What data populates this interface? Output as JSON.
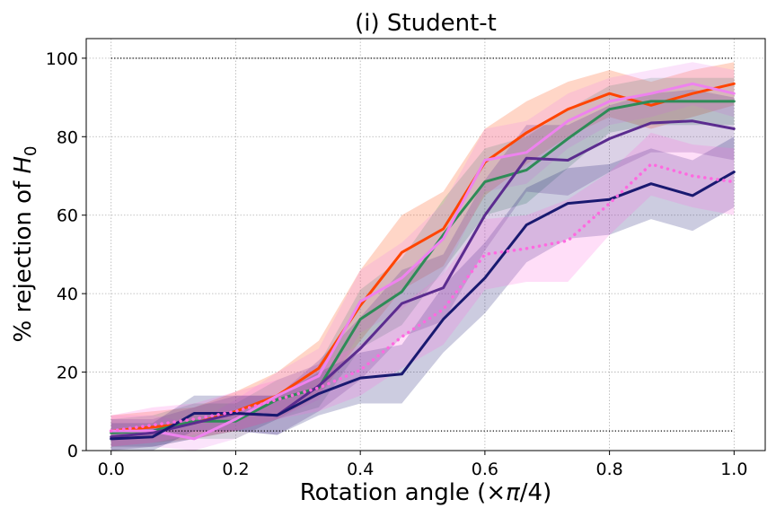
{
  "chart_data": {
    "type": "line",
    "title": "(i) Student-t",
    "xlabel": "Rotation angle (×π/4)",
    "ylabel": "% rejection of H0",
    "xlim": [
      -0.04,
      1.05
    ],
    "ylim": [
      0,
      105
    ],
    "xticks": [
      0.0,
      0.2,
      0.4,
      0.6,
      0.8,
      1.0
    ],
    "xtick_labels": [
      "0.0",
      "0.2",
      "0.4",
      "0.6",
      "0.8",
      "1.0"
    ],
    "yticks": [
      0,
      20,
      40,
      60,
      80,
      100
    ],
    "ytick_labels": [
      "0",
      "20",
      "40",
      "60",
      "80",
      "100"
    ],
    "grid": true,
    "reference_lines": [
      100,
      5
    ],
    "x": [
      0.0,
      0.0667,
      0.1333,
      0.2,
      0.2667,
      0.3333,
      0.4,
      0.4667,
      0.5333,
      0.6,
      0.6667,
      0.7333,
      0.8,
      0.8667,
      0.9333,
      1.0
    ],
    "series": [
      {
        "color": "#ff4500",
        "style": "solid",
        "values": [
          5,
          6,
          7,
          10,
          14,
          21,
          37,
          50.5,
          56.5,
          73.5,
          81,
          87,
          91,
          88,
          91,
          93.5
        ],
        "lower": [
          1,
          2,
          3,
          5,
          8,
          14,
          28,
          41,
          47,
          65,
          73,
          80,
          85,
          82,
          85,
          88
        ],
        "upper": [
          9,
          10,
          11,
          15,
          20,
          28,
          46,
          60,
          66,
          82,
          89,
          94,
          97,
          94,
          97,
          99
        ]
      },
      {
        "color": "#2e8b57",
        "style": "solid",
        "values": [
          4.5,
          5,
          7.5,
          7.5,
          13,
          16,
          33.5,
          40.5,
          55,
          68.5,
          71.5,
          79.5,
          87,
          89,
          89,
          89
        ],
        "lower": [
          1,
          1,
          3,
          3,
          8,
          11,
          26,
          32,
          46,
          60,
          63,
          72,
          81,
          83,
          83,
          83
        ],
        "upper": [
          8,
          9,
          12,
          12,
          18,
          22,
          41,
          49,
          64,
          77,
          80,
          87,
          93,
          95,
          95,
          95
        ]
      },
      {
        "color": "#ee82ee",
        "style": "solid",
        "values": [
          5,
          5,
          3,
          8,
          14,
          19,
          38,
          44,
          54,
          74,
          76,
          84,
          89,
          91,
          93.5,
          91
        ],
        "lower": [
          1,
          1,
          0,
          3,
          8,
          13,
          30,
          36,
          45,
          66,
          68,
          77,
          83,
          85,
          88,
          85
        ],
        "upper": [
          9,
          9,
          7,
          13,
          20,
          26,
          46,
          53,
          63,
          82,
          84,
          91,
          95,
          97,
          99,
          97
        ]
      },
      {
        "color": "#5b2c8f",
        "style": "solid",
        "values": [
          3.5,
          4.5,
          7,
          9.5,
          9,
          16.5,
          26,
          37.5,
          41.5,
          60,
          74.5,
          74,
          79.5,
          83.5,
          84,
          82
        ],
        "lower": [
          0,
          1,
          3,
          5,
          4,
          10,
          18,
          29,
          33,
          51,
          66,
          65,
          71,
          76,
          76,
          74
        ],
        "upper": [
          8,
          8,
          11,
          14,
          14,
          23,
          34,
          46,
          50,
          69,
          83,
          83,
          88,
          91,
          92,
          90
        ]
      },
      {
        "color": "#191970",
        "style": "solid",
        "values": [
          3,
          3.5,
          9.5,
          9.5,
          9,
          14.5,
          18.5,
          19.5,
          33.5,
          44,
          57.5,
          63,
          64,
          68,
          65,
          71
        ],
        "lower": [
          0,
          0,
          5,
          5,
          4,
          9,
          12,
          12,
          25,
          35,
          48,
          54,
          55,
          59,
          56,
          62
        ],
        "upper": [
          7,
          7,
          14,
          14,
          14,
          20,
          25,
          27,
          42,
          53,
          67,
          72,
          73,
          77,
          74,
          80
        ]
      },
      {
        "color": "#ff69e0",
        "style": "dotted",
        "values": [
          5,
          6.5,
          8,
          10,
          13,
          16,
          20.5,
          29,
          36,
          50,
          51.5,
          53.5,
          63,
          73,
          70,
          68.5
        ],
        "lower": [
          1,
          2,
          4,
          5,
          8,
          10,
          14,
          21,
          27,
          41,
          43,
          43,
          55,
          65,
          62,
          60
        ],
        "upper": [
          9,
          11,
          12,
          15,
          18,
          22,
          27,
          37,
          45,
          59,
          60,
          64,
          71,
          81,
          78,
          77
        ]
      }
    ]
  }
}
